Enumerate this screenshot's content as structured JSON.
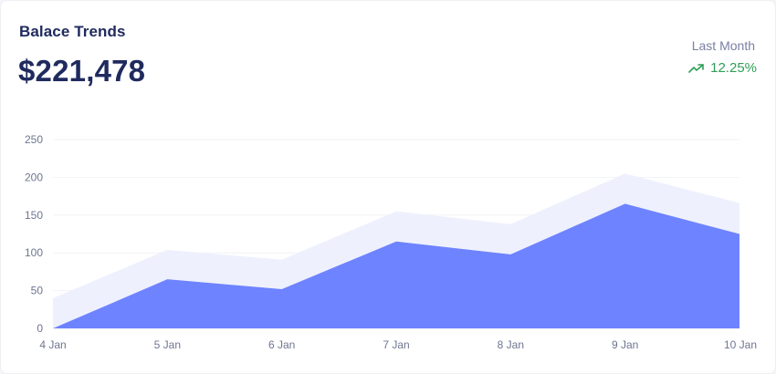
{
  "header": {
    "title": "Balace Trends",
    "amount": "$221,478",
    "period_label": "Last Month",
    "change": "12.25%",
    "change_icon": "trending-up-icon"
  },
  "colors": {
    "series_front": "#6e83ff",
    "series_back": "#eef1fd",
    "positive": "#2f9e57",
    "text_dark": "#1f2a5e"
  },
  "chart_data": {
    "type": "area",
    "x": [
      "4 Jan",
      "5 Jan",
      "6 Jan",
      "7 Jan",
      "8 Jan",
      "9 Jan",
      "10 Jan"
    ],
    "series": [
      {
        "values": [
          40,
          104,
          91,
          155,
          138,
          205,
          166
        ]
      },
      {
        "values": [
          0,
          65,
          52,
          115,
          98,
          165,
          125
        ]
      }
    ],
    "ylim": [
      0,
      250
    ],
    "yticks": [
      0,
      50,
      100,
      150,
      200,
      250
    ],
    "grid": true,
    "legend": "none",
    "title": "",
    "xlabel": "",
    "ylabel": ""
  }
}
